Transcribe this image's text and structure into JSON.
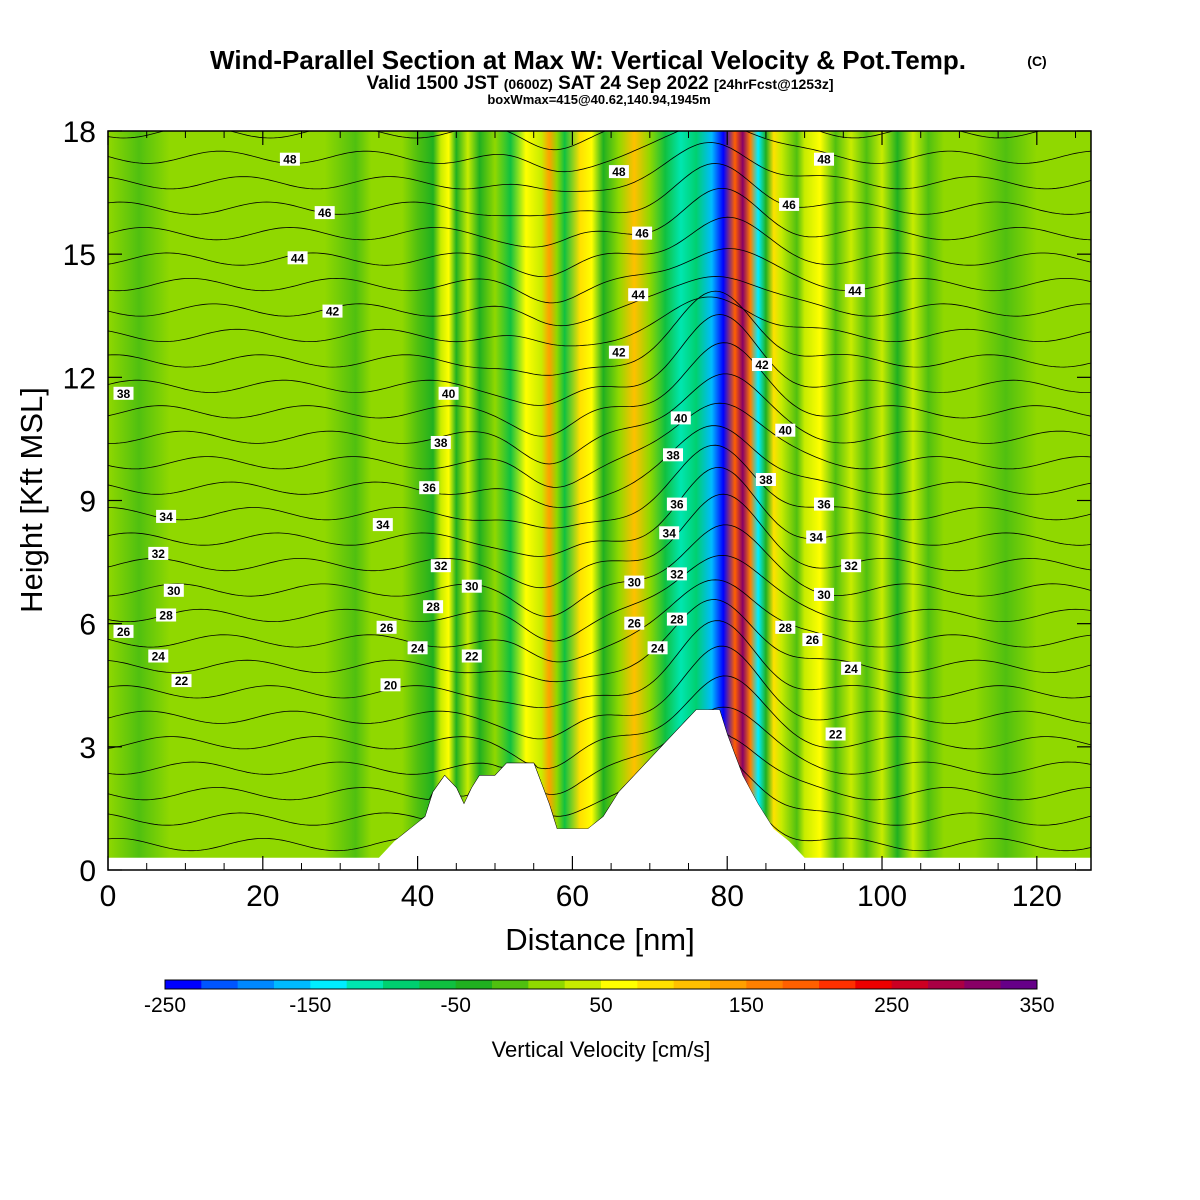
{
  "chart_data": {
    "type": "heatmap",
    "title": "Wind-Parallel Section at Max W: Vertical Velocity & Pot.Temp.",
    "title_mark": "(C)",
    "subtitle_main": "Valid 1500 JST",
    "subtitle_utc": "(0600Z)",
    "subtitle_date": "SAT 24 Sep 2022",
    "subtitle_fcst": "[24hrFcst@1253z]",
    "subtitle2": "boxWmax=415@40.62,140.94,1945m",
    "xlabel": "Distance [nm]",
    "ylabel": "Height [Kft MSL]",
    "xlim": [
      0,
      127
    ],
    "ylim": [
      0,
      18
    ],
    "xticks": [
      "0",
      "20",
      "40",
      "60",
      "80",
      "100",
      "120"
    ],
    "yticks": [
      "0",
      "3",
      "6",
      "9",
      "12",
      "15",
      "18"
    ],
    "colorbar": {
      "title": "Vertical Velocity [cm/s]",
      "min": -250,
      "max": 350,
      "step": 25,
      "tick_labels": [
        "-250",
        "-150",
        "-50",
        "50",
        "150",
        "250",
        "350"
      ],
      "colors": [
        "#0000ff",
        "#0055ff",
        "#0088ff",
        "#00bbff",
        "#00eeff",
        "#00e6b0",
        "#00d070",
        "#10c040",
        "#20b020",
        "#50c010",
        "#90d800",
        "#c8ec00",
        "#ffff00",
        "#ffe000",
        "#ffc000",
        "#ffa000",
        "#ff8000",
        "#ff6000",
        "#ff3000",
        "#ee0000",
        "#cc0022",
        "#aa0044",
        "#880066",
        "#660088"
      ]
    },
    "vertical_velocity_columns": [
      {
        "x": 0,
        "w": 0
      },
      {
        "x": 4,
        "w": -10
      },
      {
        "x": 8,
        "w": 0
      },
      {
        "x": 12,
        "w": 10
      },
      {
        "x": 16,
        "w": 5
      },
      {
        "x": 20,
        "w": 0
      },
      {
        "x": 24,
        "w": 10
      },
      {
        "x": 28,
        "w": 0
      },
      {
        "x": 32,
        "w": -10
      },
      {
        "x": 34,
        "w": 10
      },
      {
        "x": 36,
        "w": 0
      },
      {
        "x": 38,
        "w": 15
      },
      {
        "x": 40,
        "w": -20
      },
      {
        "x": 42,
        "w": -40
      },
      {
        "x": 43,
        "w": 30
      },
      {
        "x": 44,
        "w": 60
      },
      {
        "x": 45,
        "w": -30
      },
      {
        "x": 46.5,
        "w": 40
      },
      {
        "x": 48,
        "w": -40
      },
      {
        "x": 50,
        "w": 20
      },
      {
        "x": 52,
        "w": -60
      },
      {
        "x": 54,
        "w": 60
      },
      {
        "x": 56,
        "w": 40
      },
      {
        "x": 57,
        "w": 130
      },
      {
        "x": 58,
        "w": 10
      },
      {
        "x": 59,
        "w": -60
      },
      {
        "x": 61,
        "w": 90
      },
      {
        "x": 62.5,
        "w": 60
      },
      {
        "x": 64,
        "w": -30
      },
      {
        "x": 66,
        "w": 20
      },
      {
        "x": 68,
        "w": 110
      },
      {
        "x": 70,
        "w": 20
      },
      {
        "x": 72,
        "w": -60
      },
      {
        "x": 74,
        "w": -110
      },
      {
        "x": 76,
        "w": -80
      },
      {
        "x": 78,
        "w": -170
      },
      {
        "x": 79.5,
        "w": -240
      },
      {
        "x": 81,
        "w": 190
      },
      {
        "x": 82,
        "w": 300
      },
      {
        "x": 83,
        "w": 150
      },
      {
        "x": 84,
        "w": -130
      },
      {
        "x": 85,
        "w": -40
      },
      {
        "x": 86,
        "w": 80
      },
      {
        "x": 87,
        "w": 40
      },
      {
        "x": 89,
        "w": -20
      },
      {
        "x": 90,
        "w": 30
      },
      {
        "x": 92,
        "w": 60
      },
      {
        "x": 94,
        "w": -20
      },
      {
        "x": 96,
        "w": 40
      },
      {
        "x": 98,
        "w": -20
      },
      {
        "x": 100,
        "w": 30
      },
      {
        "x": 102,
        "w": -30
      },
      {
        "x": 104,
        "w": 30
      },
      {
        "x": 106,
        "w": -20
      },
      {
        "x": 108,
        "w": 20
      },
      {
        "x": 110,
        "w": 0
      },
      {
        "x": 112,
        "w": 15
      },
      {
        "x": 116,
        "w": -10
      },
      {
        "x": 120,
        "w": 10
      },
      {
        "x": 124,
        "w": 0
      },
      {
        "x": 127,
        "w": 0
      }
    ],
    "terrain": [
      {
        "x": 0,
        "y": 0.3
      },
      {
        "x": 35,
        "y": 0.3
      },
      {
        "x": 37,
        "y": 0.7
      },
      {
        "x": 39,
        "y": 1.0
      },
      {
        "x": 41,
        "y": 1.3
      },
      {
        "x": 42,
        "y": 1.9
      },
      {
        "x": 43.5,
        "y": 2.3
      },
      {
        "x": 45,
        "y": 2.0
      },
      {
        "x": 46,
        "y": 1.6
      },
      {
        "x": 47,
        "y": 2.0
      },
      {
        "x": 48,
        "y": 2.3
      },
      {
        "x": 50,
        "y": 2.3
      },
      {
        "x": 51.5,
        "y": 2.6
      },
      {
        "x": 55,
        "y": 2.6
      },
      {
        "x": 57,
        "y": 1.6
      },
      {
        "x": 58,
        "y": 1.0
      },
      {
        "x": 62,
        "y": 1.0
      },
      {
        "x": 64,
        "y": 1.3
      },
      {
        "x": 66,
        "y": 1.9
      },
      {
        "x": 68,
        "y": 2.3
      },
      {
        "x": 71,
        "y": 2.9
      },
      {
        "x": 73,
        "y": 3.3
      },
      {
        "x": 76,
        "y": 3.9
      },
      {
        "x": 79,
        "y": 3.9
      },
      {
        "x": 80,
        "y": 3.3
      },
      {
        "x": 82,
        "y": 2.3
      },
      {
        "x": 84,
        "y": 1.6
      },
      {
        "x": 86,
        "y": 1.0
      },
      {
        "x": 88,
        "y": 0.7
      },
      {
        "x": 90,
        "y": 0.3
      },
      {
        "x": 127,
        "y": 0.3
      }
    ],
    "contour_labels": [
      {
        "v": "48",
        "x": 23.5,
        "y": 17.3
      },
      {
        "v": "46",
        "x": 28,
        "y": 16.0
      },
      {
        "v": "44",
        "x": 24.5,
        "y": 14.9
      },
      {
        "v": "42",
        "x": 29,
        "y": 13.6
      },
      {
        "v": "38",
        "x": 2,
        "y": 11.6
      },
      {
        "v": "40",
        "x": 44,
        "y": 11.6
      },
      {
        "v": "38",
        "x": 43,
        "y": 10.4
      },
      {
        "v": "36",
        "x": 41.5,
        "y": 9.3
      },
      {
        "v": "34",
        "x": 7.5,
        "y": 8.6
      },
      {
        "v": "34",
        "x": 35.5,
        "y": 8.4
      },
      {
        "v": "32",
        "x": 6.5,
        "y": 7.7
      },
      {
        "v": "32",
        "x": 43,
        "y": 7.4
      },
      {
        "v": "30",
        "x": 8.5,
        "y": 6.8
      },
      {
        "v": "30",
        "x": 47,
        "y": 6.9
      },
      {
        "v": "28",
        "x": 7.5,
        "y": 6.2
      },
      {
        "v": "28",
        "x": 42,
        "y": 6.4
      },
      {
        "v": "26",
        "x": 2,
        "y": 5.8
      },
      {
        "v": "26",
        "x": 36,
        "y": 5.9
      },
      {
        "v": "24",
        "x": 6.5,
        "y": 5.2
      },
      {
        "v": "24",
        "x": 40,
        "y": 5.4
      },
      {
        "v": "22",
        "x": 9.5,
        "y": 4.6
      },
      {
        "v": "22",
        "x": 47,
        "y": 5.2
      },
      {
        "v": "20",
        "x": 36.5,
        "y": 4.5
      },
      {
        "v": "48",
        "x": 66,
        "y": 17.0
      },
      {
        "v": "46",
        "x": 69,
        "y": 15.5
      },
      {
        "v": "44",
        "x": 68.5,
        "y": 14.0
      },
      {
        "v": "42",
        "x": 66,
        "y": 12.6
      },
      {
        "v": "40",
        "x": 74,
        "y": 11.0
      },
      {
        "v": "38",
        "x": 73,
        "y": 10.1
      },
      {
        "v": "36",
        "x": 73.5,
        "y": 8.9
      },
      {
        "v": "34",
        "x": 72.5,
        "y": 8.2
      },
      {
        "v": "32",
        "x": 73.5,
        "y": 7.2
      },
      {
        "v": "30",
        "x": 68,
        "y": 7.0
      },
      {
        "v": "28",
        "x": 73.5,
        "y": 6.1
      },
      {
        "v": "26",
        "x": 68,
        "y": 6.0
      },
      {
        "v": "24",
        "x": 71,
        "y": 5.4
      },
      {
        "v": "48",
        "x": 92.5,
        "y": 17.3
      },
      {
        "v": "46",
        "x": 88,
        "y": 16.2
      },
      {
        "v": "44",
        "x": 96.5,
        "y": 14.1
      },
      {
        "v": "42",
        "x": 84.5,
        "y": 12.3
      },
      {
        "v": "40",
        "x": 87.5,
        "y": 10.7
      },
      {
        "v": "38",
        "x": 85,
        "y": 9.5
      },
      {
        "v": "36",
        "x": 92.5,
        "y": 8.9
      },
      {
        "v": "34",
        "x": 91.5,
        "y": 8.1
      },
      {
        "v": "32",
        "x": 96,
        "y": 7.4
      },
      {
        "v": "30",
        "x": 92.5,
        "y": 6.7
      },
      {
        "v": "28",
        "x": 87.5,
        "y": 5.9
      },
      {
        "v": "26",
        "x": 91,
        "y": 5.6
      },
      {
        "v": "24",
        "x": 96,
        "y": 4.9
      },
      {
        "v": "22",
        "x": 94,
        "y": 3.3
      }
    ]
  }
}
